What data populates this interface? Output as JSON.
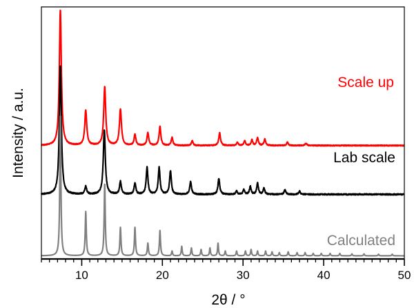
{
  "chart_data": {
    "type": "line",
    "title": "",
    "xlabel": "2θ / °",
    "ylabel": "Intensity / a.u.",
    "xlim": [
      5,
      50
    ],
    "x_ticks": [
      10,
      20,
      30,
      40,
      50
    ],
    "x_minor_step": 1,
    "grid": false,
    "y_tick_labels": false,
    "series": [
      {
        "name": "Scale up",
        "color": "#ff0000",
        "baseline": 0.72,
        "noise": 0.003,
        "peaks": [
          [
            7.35,
            0.86,
            0.15
          ],
          [
            10.5,
            0.22,
            0.15
          ],
          [
            12.85,
            0.37,
            0.15
          ],
          [
            14.8,
            0.23,
            0.15
          ],
          [
            16.6,
            0.07,
            0.13
          ],
          [
            18.2,
            0.08,
            0.13
          ],
          [
            19.7,
            0.12,
            0.13
          ],
          [
            21.2,
            0.05,
            0.12
          ],
          [
            23.7,
            0.03,
            0.12
          ],
          [
            27.1,
            0.08,
            0.13
          ],
          [
            29.3,
            0.02,
            0.12
          ],
          [
            30.2,
            0.03,
            0.12
          ],
          [
            31.1,
            0.035,
            0.12
          ],
          [
            31.8,
            0.05,
            0.12
          ],
          [
            32.7,
            0.04,
            0.12
          ],
          [
            35.5,
            0.02,
            0.12
          ],
          [
            37.8,
            0.015,
            0.12
          ]
        ]
      },
      {
        "name": "Lab scale",
        "color": "#000000",
        "baseline": 0.41,
        "noise": 0.004,
        "peaks": [
          [
            7.35,
            0.82,
            0.15
          ],
          [
            10.5,
            0.05,
            0.13
          ],
          [
            12.8,
            0.41,
            0.15
          ],
          [
            14.8,
            0.08,
            0.13
          ],
          [
            16.6,
            0.07,
            0.13
          ],
          [
            18.1,
            0.17,
            0.13
          ],
          [
            19.6,
            0.17,
            0.13
          ],
          [
            21.0,
            0.15,
            0.13
          ],
          [
            23.5,
            0.08,
            0.13
          ],
          [
            27.0,
            0.1,
            0.13
          ],
          [
            29.2,
            0.02,
            0.12
          ],
          [
            30.1,
            0.03,
            0.12
          ],
          [
            30.9,
            0.05,
            0.12
          ],
          [
            31.8,
            0.07,
            0.12
          ],
          [
            32.6,
            0.04,
            0.12
          ],
          [
            35.2,
            0.03,
            0.12
          ],
          [
            37.0,
            0.02,
            0.12
          ]
        ]
      },
      {
        "name": "Calculated",
        "color": "#808080",
        "baseline": 0.02,
        "noise": 0.0,
        "peaks": [
          [
            7.35,
            0.9,
            0.08
          ],
          [
            10.5,
            0.28,
            0.08
          ],
          [
            12.85,
            0.46,
            0.08
          ],
          [
            14.8,
            0.18,
            0.08
          ],
          [
            16.6,
            0.18,
            0.08
          ],
          [
            18.2,
            0.08,
            0.08
          ],
          [
            19.7,
            0.16,
            0.08
          ],
          [
            21.2,
            0.03,
            0.07
          ],
          [
            22.4,
            0.06,
            0.07
          ],
          [
            23.6,
            0.05,
            0.07
          ],
          [
            24.8,
            0.04,
            0.07
          ],
          [
            25.9,
            0.05,
            0.07
          ],
          [
            26.9,
            0.08,
            0.07
          ],
          [
            27.8,
            0.03,
            0.07
          ],
          [
            29.2,
            0.03,
            0.07
          ],
          [
            30.3,
            0.03,
            0.07
          ],
          [
            31.0,
            0.04,
            0.07
          ],
          [
            31.8,
            0.03,
            0.07
          ],
          [
            32.8,
            0.03,
            0.07
          ],
          [
            33.6,
            0.025,
            0.07
          ],
          [
            34.5,
            0.02,
            0.07
          ],
          [
            35.6,
            0.025,
            0.07
          ],
          [
            36.7,
            0.02,
            0.07
          ],
          [
            37.7,
            0.02,
            0.07
          ],
          [
            38.7,
            0.015,
            0.07
          ],
          [
            39.7,
            0.015,
            0.07
          ],
          [
            40.8,
            0.015,
            0.07
          ],
          [
            42.0,
            0.015,
            0.07
          ],
          [
            43.5,
            0.012,
            0.07
          ],
          [
            45.0,
            0.012,
            0.07
          ],
          [
            46.8,
            0.01,
            0.07
          ],
          [
            48.5,
            0.01,
            0.07
          ]
        ]
      }
    ]
  }
}
